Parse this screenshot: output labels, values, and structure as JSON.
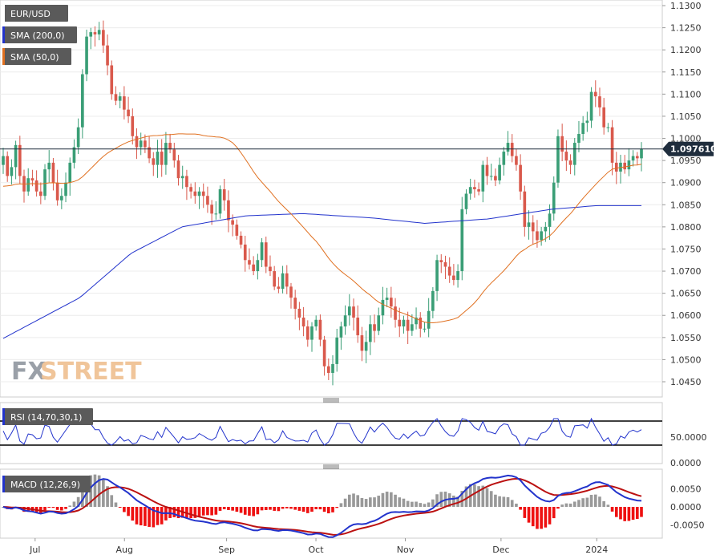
{
  "chart_data": [
    {
      "type": "candlestick",
      "title": "EUR/USD",
      "legend": [
        "EUR/USD",
        "SMA (200,0)",
        "SMA (50,0)"
      ],
      "legend_colors": [
        "#ffffff",
        "#2233cc",
        "#e07020"
      ],
      "y_ticks": [
        "1.1300",
        "1.1250",
        "1.1200",
        "1.1150",
        "1.1100",
        "1.1050",
        "1.1000",
        "1.0950",
        "1.0900",
        "1.0850",
        "1.0800",
        "1.0750",
        "1.0700",
        "1.0650",
        "1.0600",
        "1.0550",
        "1.0500",
        "1.0450"
      ],
      "ylim": [
        1.0425,
        1.13
      ],
      "last_price": 1.09761,
      "last_price_label": "1.097610",
      "x_ticks": [
        "Jul",
        "Aug",
        "Sep",
        "Oct",
        "Nov",
        "Dec",
        "2024"
      ],
      "close_series": [
        1.096,
        1.0915,
        1.0935,
        1.0985,
        1.0915,
        1.088,
        1.091,
        1.0905,
        1.088,
        1.087,
        1.093,
        1.0945,
        1.09,
        1.086,
        1.087,
        1.09,
        1.0945,
        1.098,
        1.1025,
        1.1145,
        1.123,
        1.124,
        1.1235,
        1.1245,
        1.121,
        1.1165,
        1.11,
        1.1085,
        1.1095,
        1.1065,
        1.105,
        1.1005,
        1.098,
        1.0995,
        1.098,
        1.0955,
        1.094,
        1.097,
        1.094,
        1.099,
        1.0975,
        1.095,
        1.091,
        1.0915,
        1.089,
        1.088,
        1.087,
        1.088,
        1.087,
        1.085,
        1.083,
        1.083,
        1.0885,
        1.086,
        1.0815,
        1.0805,
        1.078,
        1.076,
        1.0725,
        1.0715,
        1.07,
        1.0725,
        1.0765,
        1.071,
        1.07,
        1.0665,
        1.066,
        1.0695,
        1.0665,
        1.064,
        1.0615,
        1.0595,
        1.0575,
        1.0545,
        1.0575,
        1.059,
        1.0545,
        1.0485,
        1.047,
        1.049,
        1.055,
        1.0575,
        1.06,
        1.062,
        1.0595,
        1.0555,
        1.052,
        1.054,
        1.058,
        1.0565,
        1.06,
        1.0635,
        1.064,
        1.062,
        1.059,
        1.0575,
        1.059,
        1.0565,
        1.058,
        1.0595,
        1.057,
        1.057,
        1.061,
        1.0655,
        1.0725,
        1.072,
        1.071,
        1.069,
        1.068,
        1.07,
        1.084,
        1.0875,
        1.089,
        1.0885,
        1.088,
        1.094,
        1.0915,
        1.0915,
        1.0905,
        1.094,
        1.097,
        1.099,
        1.096,
        1.094,
        1.088,
        1.08,
        1.081,
        1.079,
        1.077,
        1.079,
        1.08,
        1.083,
        1.09,
        1.1005,
        1.097,
        1.095,
        1.094,
        1.099,
        1.101,
        1.1035,
        1.104,
        1.1105,
        1.1095,
        1.107,
        1.1025,
        1.1025,
        1.0945,
        1.0925,
        1.0945,
        1.093,
        1.095,
        1.096,
        1.0955,
        1.0976
      ]
    },
    {
      "type": "line",
      "title": "RSI (14,70,30,1)",
      "y_ticks": [
        "50.0000",
        "0.0000"
      ],
      "levels": [
        70,
        30
      ],
      "line_color": "#2233cc"
    },
    {
      "type": "bar",
      "title": "MACD (12,26,9)",
      "y_ticks": [
        "0.0050",
        "0.0000",
        "-0.0050"
      ],
      "ylim": [
        -0.0062,
        0.0072
      ],
      "series_colors": {
        "macd": "#2233cc",
        "signal": "#bb1111",
        "hist_pos": "#999999",
        "hist_neg": "#ee1111"
      }
    }
  ],
  "brand": {
    "fx": "FX",
    "street": "STREET"
  },
  "colors": {
    "up": "#3a9e76",
    "down": "#d9594c",
    "sma200": "#2233cc",
    "sma50": "#e07020",
    "legend_bg": "#5a5a5a"
  }
}
